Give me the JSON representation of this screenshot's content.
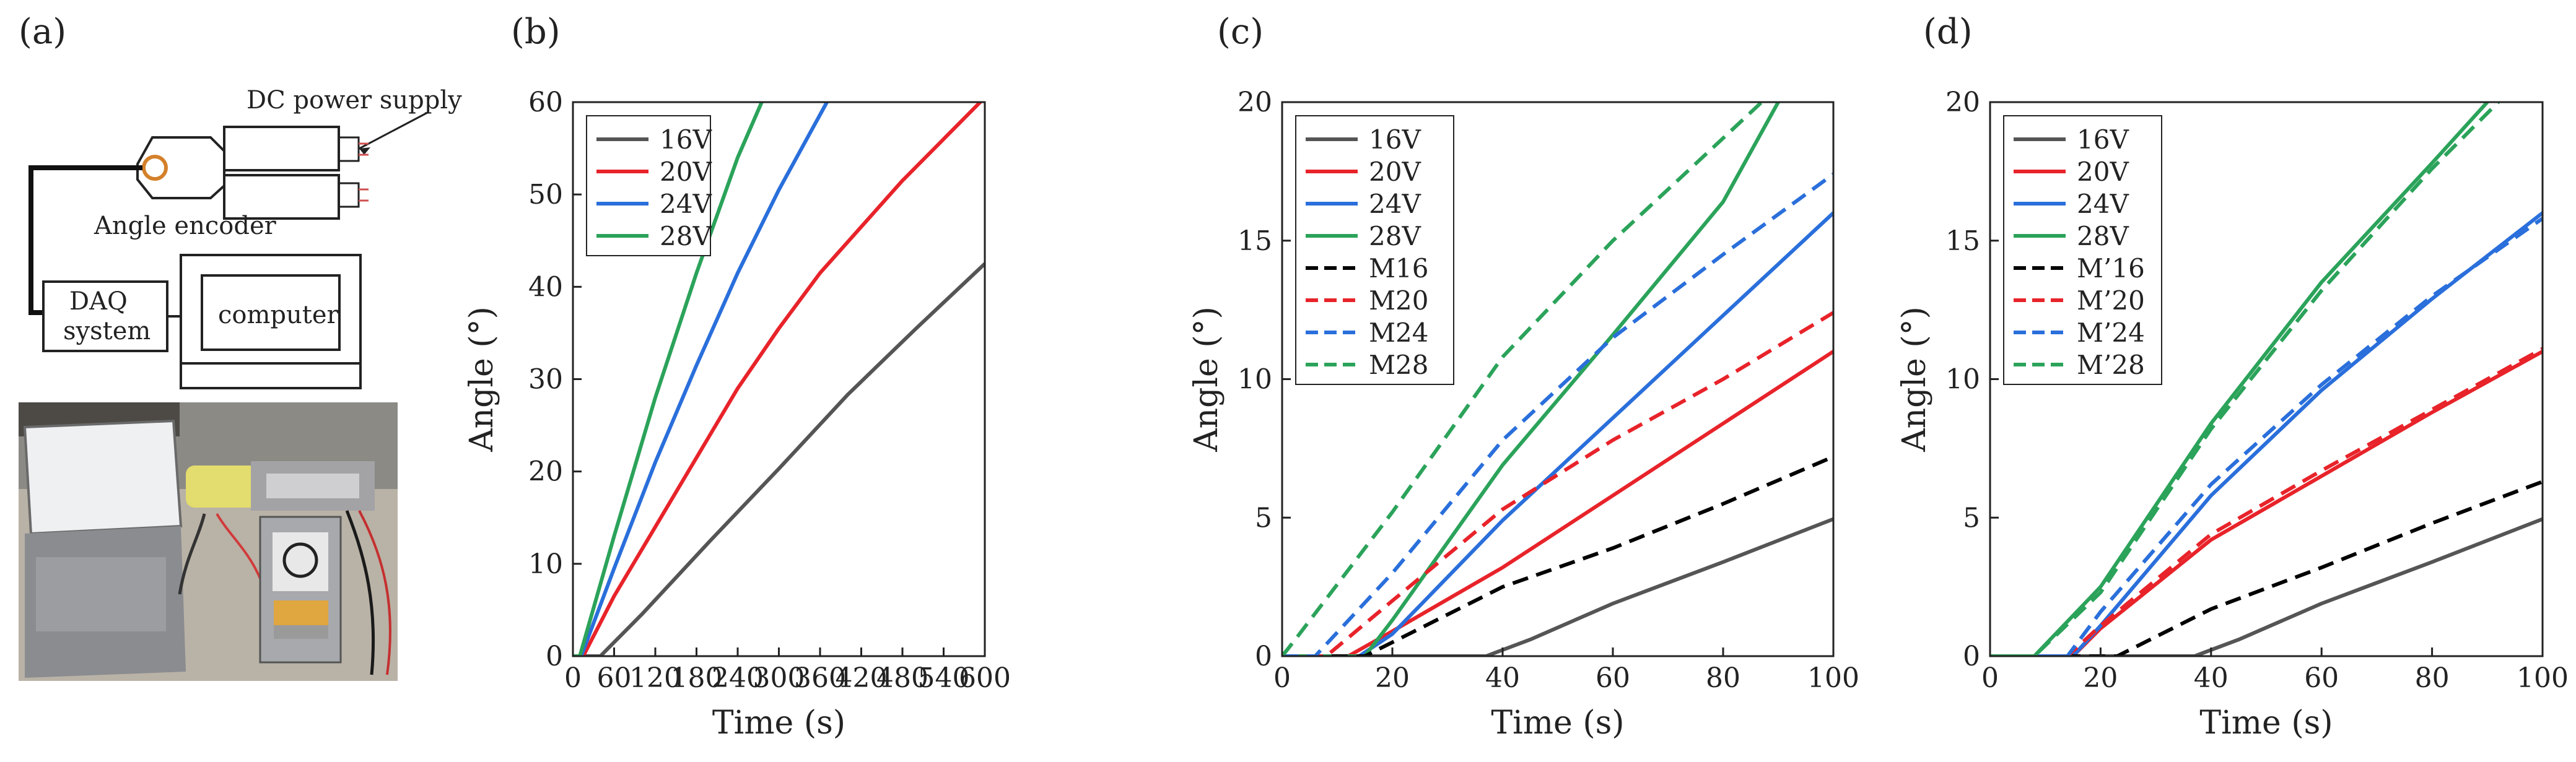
{
  "panel_labels": [
    "(a)",
    "(b)",
    "(c)",
    "(d)"
  ],
  "schematic": {
    "power_label": "DC power supply",
    "encoder_label": "Angle encoder",
    "daq_line1": "DAQ",
    "daq_line2": "system",
    "computer_label": "computer"
  },
  "colors": {
    "16V": "#555555",
    "20V": "#e8232a",
    "24V": "#2a6fdb",
    "28V": "#2ba35a",
    "M16": "#000000",
    "M20": "#e8232a",
    "M24": "#2a6fdb",
    "M28": "#2ba35a"
  },
  "chart_data": [
    {
      "id": "b",
      "type": "line",
      "xlabel": "Time (s)",
      "ylabel": "Angle (°)",
      "xlim": [
        0,
        600
      ],
      "ylim": [
        0,
        60
      ],
      "xticks": [
        0,
        60,
        120,
        180,
        240,
        300,
        360,
        420,
        480,
        540,
        600
      ],
      "yticks": [
        0,
        10,
        20,
        30,
        40,
        50,
        60
      ],
      "legend_position": "top-left",
      "series": [
        {
          "name": "16V",
          "color": "#555555",
          "dash": false,
          "x": [
            0,
            40,
            100,
            200,
            300,
            400,
            500,
            600
          ],
          "y": [
            0,
            0,
            4.5,
            12.5,
            20.3,
            28.3,
            35.5,
            42.5
          ]
        },
        {
          "name": "20V",
          "color": "#e8232a",
          "dash": false,
          "x": [
            0,
            15,
            60,
            120,
            180,
            240,
            300,
            360,
            420,
            480,
            540,
            600
          ],
          "y": [
            0,
            0,
            6.5,
            14,
            21.5,
            29,
            35.5,
            41.5,
            46.5,
            51.5,
            56,
            60.5
          ]
        },
        {
          "name": "24V",
          "color": "#2a6fdb",
          "dash": false,
          "x": [
            0,
            12,
            60,
            120,
            180,
            240,
            300,
            370
          ],
          "y": [
            0,
            0,
            9.5,
            21,
            31.5,
            41.5,
            50.5,
            60
          ]
        },
        {
          "name": "28V",
          "color": "#2ba35a",
          "dash": false,
          "x": [
            0,
            10,
            60,
            120,
            180,
            240,
            275
          ],
          "y": [
            0,
            0,
            13,
            28,
            41.5,
            54,
            60
          ]
        }
      ]
    },
    {
      "id": "c",
      "type": "line",
      "xlabel": "Time (s)",
      "ylabel": "Angle (°)",
      "xlim": [
        0,
        100
      ],
      "ylim": [
        0,
        20
      ],
      "xticks": [
        0,
        20,
        40,
        60,
        80,
        100
      ],
      "yticks": [
        0,
        5,
        10,
        15,
        20
      ],
      "legend_position": "top-left",
      "series": [
        {
          "name": "16V",
          "color": "#555555",
          "dash": false,
          "x": [
            0,
            37,
            45,
            60,
            80,
            100
          ],
          "y": [
            0,
            0,
            0.6,
            1.9,
            3.4,
            4.95
          ]
        },
        {
          "name": "20V",
          "color": "#e8232a",
          "dash": false,
          "x": [
            0,
            12,
            20,
            40,
            60,
            80,
            100
          ],
          "y": [
            0,
            0,
            0.9,
            3.2,
            5.8,
            8.4,
            11.0
          ]
        },
        {
          "name": "24V",
          "color": "#2a6fdb",
          "dash": false,
          "x": [
            0,
            14,
            20,
            40,
            60,
            80,
            100
          ],
          "y": [
            0,
            0,
            0.8,
            4.9,
            8.6,
            12.3,
            16.0
          ]
        },
        {
          "name": "28V",
          "color": "#2ba35a",
          "dash": false,
          "x": [
            0,
            15,
            20,
            40,
            60,
            80,
            90
          ],
          "y": [
            0,
            0,
            1.3,
            6.9,
            11.6,
            16.4,
            20.0
          ]
        },
        {
          "name": "M16",
          "color": "#000000",
          "dash": true,
          "x": [
            0,
            15,
            40,
            60,
            80,
            100
          ],
          "y": [
            0,
            0,
            2.5,
            3.9,
            5.5,
            7.2
          ]
        },
        {
          "name": "M20",
          "color": "#e8232a",
          "dash": true,
          "x": [
            0,
            8,
            20,
            40,
            60,
            80,
            100
          ],
          "y": [
            0,
            0,
            2.0,
            5.3,
            7.8,
            10.0,
            12.4
          ]
        },
        {
          "name": "M24",
          "color": "#2a6fdb",
          "dash": true,
          "x": [
            0,
            6,
            20,
            40,
            60,
            80,
            100
          ],
          "y": [
            0,
            0,
            3.0,
            7.8,
            11.5,
            14.5,
            17.4
          ]
        },
        {
          "name": "M28",
          "color": "#2ba35a",
          "dash": true,
          "x": [
            0,
            2,
            20,
            40,
            60,
            80,
            87
          ],
          "y": [
            0,
            0.5,
            5.2,
            10.8,
            15.0,
            18.7,
            20.0
          ]
        }
      ]
    },
    {
      "id": "d",
      "type": "line",
      "xlabel": "Time (s)",
      "ylabel": "Angle (°)",
      "xlim": [
        0,
        100
      ],
      "ylim": [
        0,
        20
      ],
      "xticks": [
        0,
        20,
        40,
        60,
        80,
        100
      ],
      "yticks": [
        0,
        5,
        10,
        15,
        20
      ],
      "legend_position": "top-left",
      "series": [
        {
          "name": "16V",
          "color": "#555555",
          "dash": false,
          "x": [
            0,
            37,
            45,
            60,
            80,
            100
          ],
          "y": [
            0,
            0,
            0.6,
            1.9,
            3.4,
            4.95
          ]
        },
        {
          "name": "20V",
          "color": "#e8232a",
          "dash": false,
          "x": [
            0,
            15,
            20,
            40,
            60,
            80,
            100
          ],
          "y": [
            0,
            0,
            1.0,
            4.2,
            6.5,
            8.8,
            11.0
          ]
        },
        {
          "name": "24V",
          "color": "#2a6fdb",
          "dash": false,
          "x": [
            0,
            15,
            20,
            40,
            60,
            80,
            100
          ],
          "y": [
            0,
            0,
            1.1,
            5.8,
            9.6,
            12.9,
            16.0
          ]
        },
        {
          "name": "28V",
          "color": "#2ba35a",
          "dash": false,
          "x": [
            0,
            8,
            20,
            40,
            60,
            80,
            90
          ],
          "y": [
            0,
            0,
            2.5,
            8.4,
            13.5,
            17.8,
            20.0
          ]
        },
        {
          "name": "M’16",
          "color": "#000000",
          "dash": true,
          "x": [
            0,
            23,
            40,
            60,
            80,
            100
          ],
          "y": [
            0,
            0,
            1.7,
            3.2,
            4.8,
            6.3
          ]
        },
        {
          "name": "M’20",
          "color": "#e8232a",
          "dash": true,
          "x": [
            0,
            14,
            20,
            40,
            60,
            80,
            100
          ],
          "y": [
            0,
            0,
            1.1,
            4.4,
            6.7,
            8.9,
            11.1
          ]
        },
        {
          "name": "M’24",
          "color": "#2a6fdb",
          "dash": true,
          "x": [
            0,
            14,
            20,
            40,
            60,
            80,
            100
          ],
          "y": [
            0,
            0,
            1.6,
            6.2,
            9.8,
            13.0,
            15.8
          ]
        },
        {
          "name": "M’28",
          "color": "#2ba35a",
          "dash": true,
          "x": [
            0,
            8,
            20,
            40,
            60,
            80,
            92
          ],
          "y": [
            0,
            0,
            2.3,
            8.2,
            13.2,
            17.6,
            20.0
          ]
        }
      ]
    }
  ]
}
